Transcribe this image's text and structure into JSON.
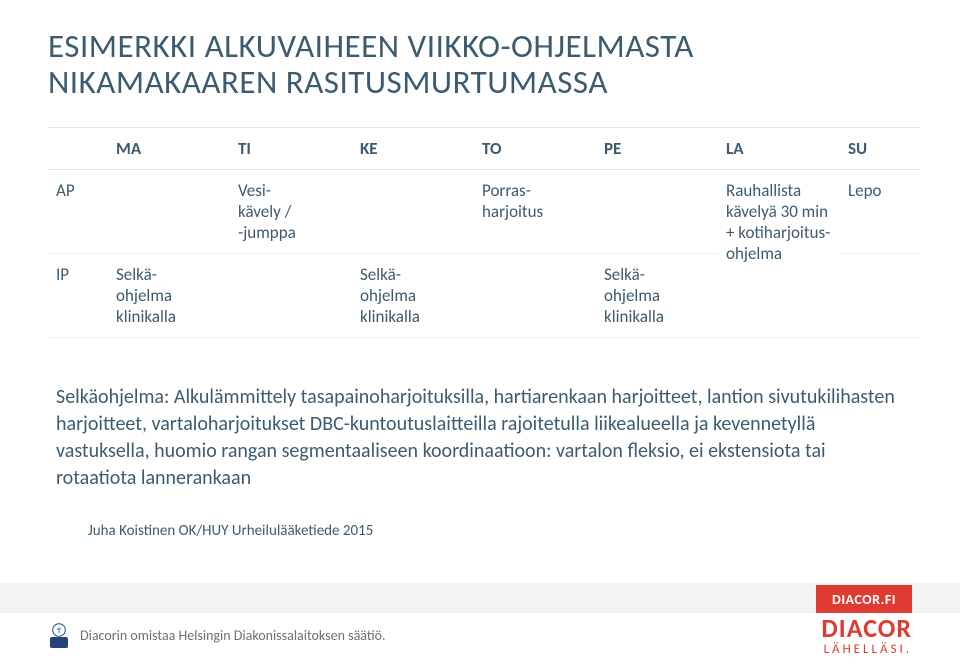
{
  "colors": {
    "title": "#3d5b6e",
    "text": "#3d5b6e",
    "brand_bg": "#de3c32",
    "brand_fg": "#ffffff",
    "owner_text": "#6f6f6f",
    "band": "#f3f3f3"
  },
  "title_line1": "ESIMERKKI ALKUVAIHEEN VIIKKO-OHJELMASTA",
  "title_line2": "NIKAMAKAAREN RASITUSMURTUMASSA",
  "title_fontsize": 33,
  "table": {
    "row_labels": [
      "AP",
      "IP"
    ],
    "days": [
      "MA",
      "TI",
      "KE",
      "TO",
      "PE",
      "LA",
      "SU"
    ],
    "ap": {
      "ma": "",
      "ti": "Vesi-\nkävely /\n-jumppa",
      "ke": "",
      "to": "Porras-\nharjoitus",
      "pe": "",
      "la": "Rauhallista\nkävelyä 30 min\n+ kotiharjoitus-\nohjelma",
      "su": "Lepo"
    },
    "ip": {
      "ma": "Selkä-\nohjelma\nklinikalla",
      "ti": "",
      "ke": "Selkä-\nohjelma\nklinikalla",
      "to": "",
      "pe": "Selkä-\nohjelma\nklinikalla",
      "la": "",
      "su": ""
    }
  },
  "paragraph": "Selkäohjelma: Alkulämmittely tasapainoharjoituksilla, hartiarenkaan harjoitteet, lantion sivutukilihasten harjoitteet, vartaloharjoitukset DBC-kuntoutuslaitteilla rajoitetulla liikealueella ja kevennetyllä vastuksella, huomio rangan segmentaaliseen koordinaatioon: vartalon fleksio, ei ekstensiota tai rotaatiota lannerankaan",
  "paragraph_fontsize": 20,
  "attribution": "Juha Koistinen OK/HUY Urheilulääketiede 2015",
  "brand": {
    "url_label": "DIACOR.FI",
    "logo_name": "DIACOR",
    "tagline": "LÄHELLÄSI."
  },
  "owner_line": "Diacorin omistaa Helsingin Diakonissalaitoksen säätiö."
}
